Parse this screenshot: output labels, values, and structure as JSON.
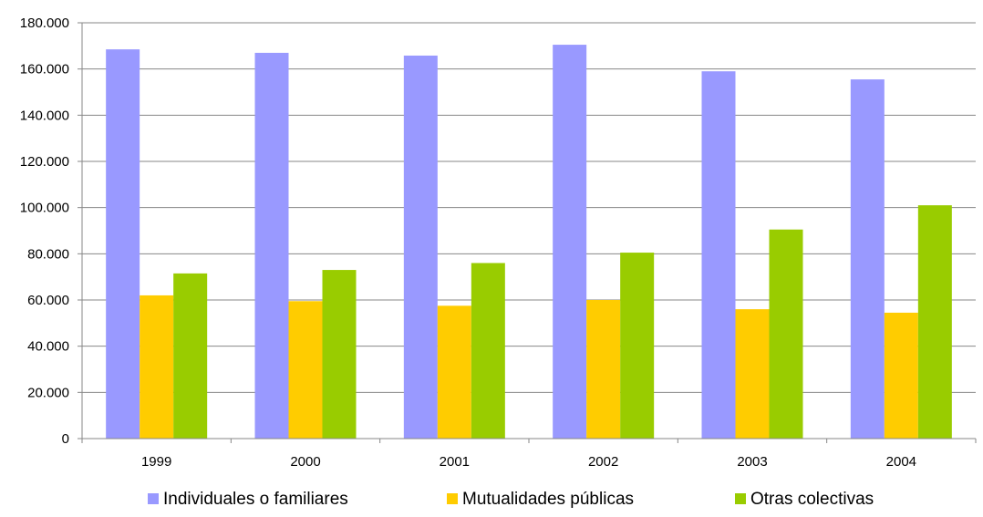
{
  "chart_data": {
    "type": "bar",
    "title": "",
    "xlabel": "",
    "ylabel": "",
    "categories": [
      "1999",
      "2000",
      "2001",
      "2002",
      "2003",
      "2004"
    ],
    "ylim": [
      0,
      180000
    ],
    "yticks": [
      0,
      20000,
      40000,
      60000,
      80000,
      100000,
      120000,
      140000,
      160000,
      180000
    ],
    "ytick_labels": [
      "0",
      "20.000",
      "40.000",
      "60.000",
      "80.000",
      "100.000",
      "120.000",
      "140.000",
      "160.000",
      "180.000"
    ],
    "grid": true,
    "legend_position": "bottom",
    "series": [
      {
        "name": "Individuales o familiares",
        "color": "#9999FF",
        "values": [
          168500,
          167000,
          165800,
          170500,
          159000,
          155500
        ]
      },
      {
        "name": "Mutualidades públicas",
        "color": "#FFCC00",
        "values": [
          62000,
          59500,
          57500,
          60000,
          56000,
          54500
        ]
      },
      {
        "name": "Otras colectivas",
        "color": "#99CC00",
        "values": [
          71500,
          73000,
          76000,
          80500,
          90500,
          101000
        ]
      }
    ]
  }
}
